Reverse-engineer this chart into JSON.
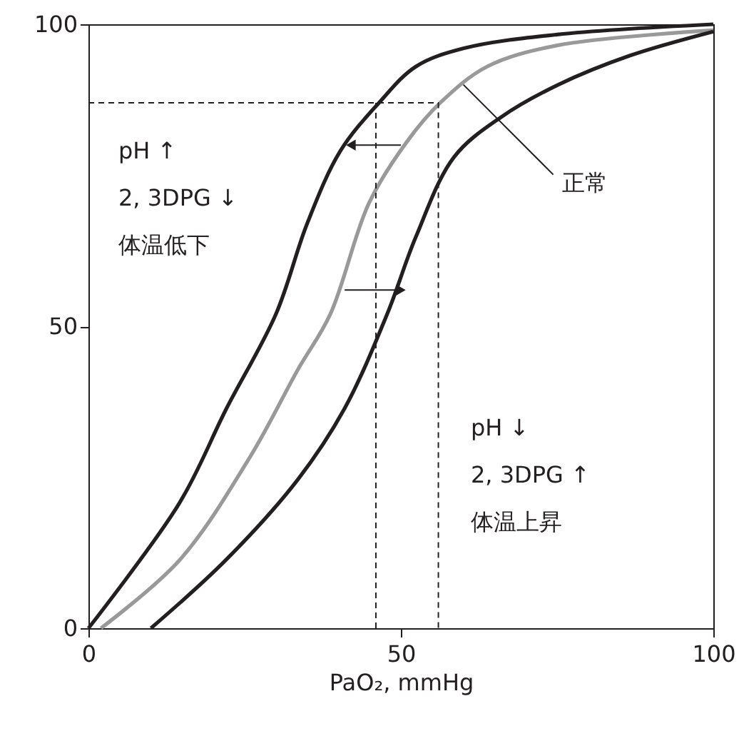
{
  "chart_data": {
    "type": "line",
    "xlabel": "PaO₂, mmHg",
    "xlim": [
      0,
      100
    ],
    "ylim": [
      0,
      100
    ],
    "xticks": [
      0,
      50,
      100
    ],
    "yticks": [
      0,
      50,
      100
    ],
    "grid": false,
    "marker": "none",
    "line_style": "solid",
    "series": [
      {
        "color": "#231f20",
        "x": [
          0,
          14.6,
          22.1,
          30,
          35,
          40.3,
          46.5,
          52.4,
          60,
          75,
          100
        ],
        "values": [
          0,
          20.8,
          36.4,
          52,
          67,
          79,
          87,
          93,
          96,
          98.3,
          100
        ]
      },
      {
        "color": "#999999",
        "x": [
          2,
          14.6,
          26,
          33.5,
          38.7,
          44.9,
          51,
          56.3,
          63.8,
          75,
          100
        ],
        "values": [
          0,
          11.3,
          28.6,
          42.8,
          52,
          70.4,
          80.6,
          87,
          93,
          96.5,
          99
        ]
      },
      {
        "color": "#231f20",
        "x": [
          10,
          22,
          33.5,
          41,
          47.8,
          52.4,
          58.5,
          66,
          75.2,
          86.6,
          100
        ],
        "values": [
          0,
          11.3,
          24.6,
          36.4,
          52,
          64.8,
          78,
          84.6,
          90,
          94.8,
          98.8
        ]
      },
      {
        "color": "#231f20",
        "line_style": "dashed",
        "x": [
          0,
          56,
          56
        ],
        "values": [
          87,
          87,
          0
        ]
      },
      {
        "color": "#231f20",
        "line_style": "dashed",
        "x": [
          46,
          46
        ],
        "values": [
          87,
          0
        ]
      },
      {
        "color": "#231f20",
        "marker": "triangle",
        "x": [
          50,
          42
        ],
        "values": [
          80,
          80
        ]
      },
      {
        "color": "#231f20",
        "marker": "triangle",
        "x": [
          41,
          50
        ],
        "values": [
          56,
          56
        ]
      }
    ],
    "annotations": [
      {
        "text": "正常",
        "x": 60,
        "y": 90
      },
      "pH ↑\n2, 3DPG ↓\n体温低下",
      "pH ↓\n2, 3DPG ↑\n体温上昇"
    ]
  }
}
